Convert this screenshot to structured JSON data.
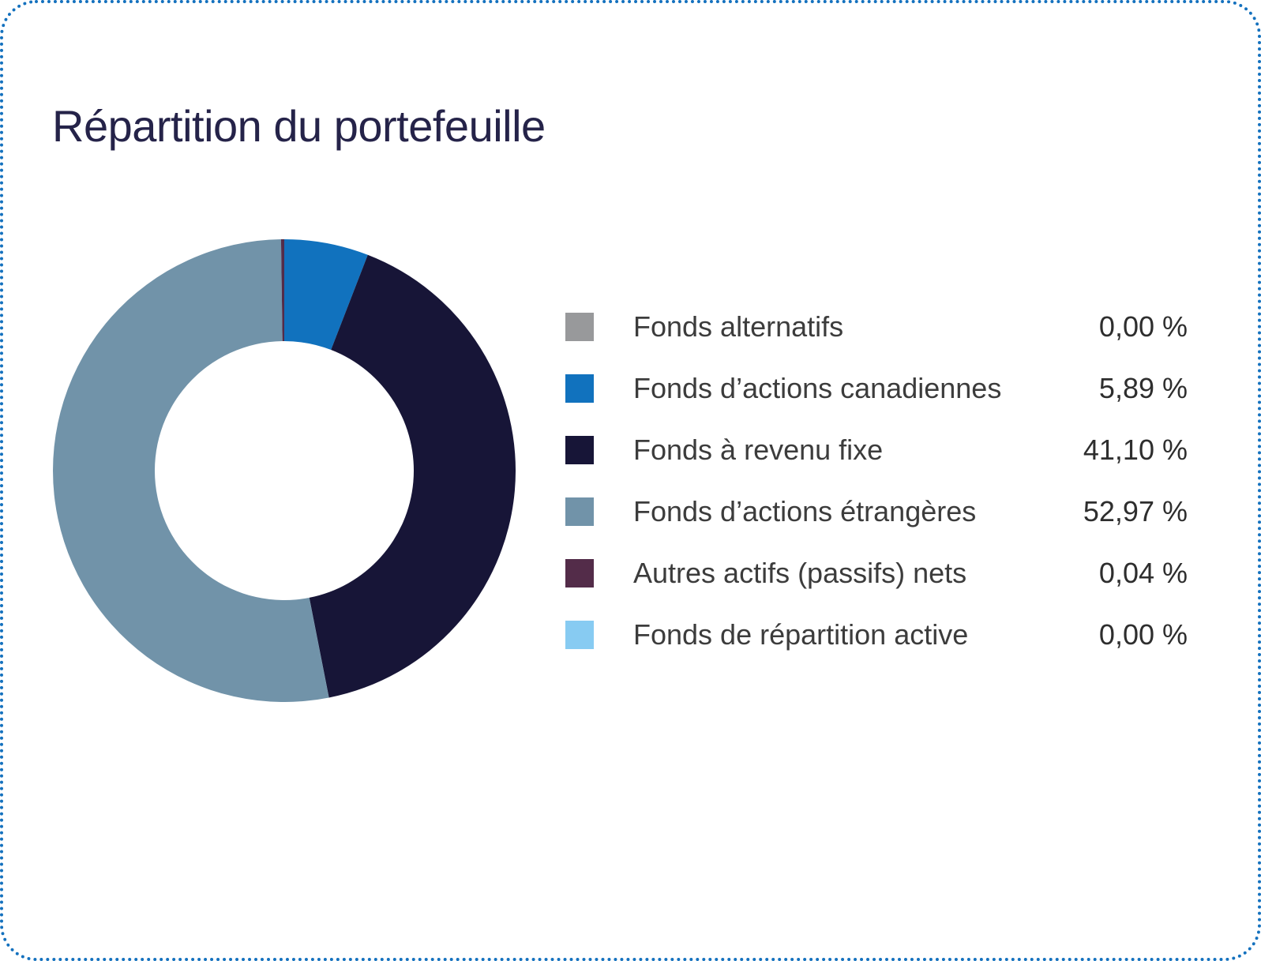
{
  "page": {
    "background_color": "#FFFFFF",
    "border_color": "#1471BE"
  },
  "header": {
    "title": "Répartition du portefeuille",
    "title_color": "#252349"
  },
  "chart_data": {
    "type": "pie",
    "variant": "donut",
    "title": "Répartition du portefeuille",
    "legend_position": "right",
    "start_angle_deg": 0,
    "direction": "clockwise",
    "inner_radius_ratio": 0.56,
    "total": 100,
    "hole_color": "#FFFFFF",
    "categories": [
      "Fonds alternatifs",
      "Fonds d’actions canadiennes",
      "Fonds à revenu fixe",
      "Fonds d’actions étrangères",
      "Autres actifs (passifs) nets",
      "Fonds de répartition active"
    ],
    "values": [
      0.0,
      5.89,
      41.1,
      52.97,
      0.04,
      0.0
    ],
    "items": [
      {
        "key": "fonds-alternatifs",
        "label": "Fonds alternatifs",
        "value": 0.0,
        "value_label": "0,00 %",
        "color": "#98999B"
      },
      {
        "key": "actions-canadiennes",
        "label": "Fonds d’actions canadiennes",
        "value": 5.89,
        "value_label": "5,89 %",
        "color": "#1172BE"
      },
      {
        "key": "revenu-fixe",
        "label": "Fonds à revenu fixe",
        "value": 41.1,
        "value_label": "41,10 %",
        "color": "#171537"
      },
      {
        "key": "actions-etrangeres",
        "label": "Fonds d’actions étrangères",
        "value": 52.97,
        "value_label": "52,97 %",
        "color": "#7193A9"
      },
      {
        "key": "autres-actifs",
        "label": "Autres actifs (passifs) nets",
        "value": 0.04,
        "value_label": "0,04 %",
        "color": "#532C49"
      },
      {
        "key": "repartition-active",
        "label": "Fonds de répartition active",
        "value": 0.0,
        "value_label": "0,00 %",
        "color": "#87CBF2"
      }
    ]
  }
}
